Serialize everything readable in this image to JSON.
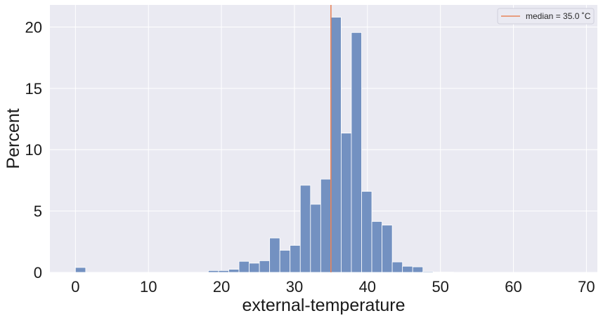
{
  "chart_data": {
    "type": "bar",
    "title": "",
    "xlabel": "external-temperature",
    "ylabel": "Percent",
    "xlim": [
      -3.5,
      71.5
    ],
    "ylim": [
      0,
      21.8
    ],
    "xticks": [
      0,
      10,
      20,
      30,
      40,
      50,
      60,
      70
    ],
    "yticks": [
      0,
      5,
      10,
      15,
      20
    ],
    "grid": true,
    "legend_placement": "top-right",
    "bin_width": 1.4,
    "bins": [
      {
        "x0": 0.0,
        "value": 0.4
      },
      {
        "x0": 1.4,
        "value": 0.0
      },
      {
        "x0": 2.8,
        "value": 0.0
      },
      {
        "x0": 4.2,
        "value": 0.0
      },
      {
        "x0": 5.6,
        "value": 0.0
      },
      {
        "x0": 7.0,
        "value": 0.0
      },
      {
        "x0": 8.4,
        "value": 0.0
      },
      {
        "x0": 9.8,
        "value": 0.0
      },
      {
        "x0": 11.2,
        "value": 0.0
      },
      {
        "x0": 12.6,
        "value": 0.0
      },
      {
        "x0": 14.0,
        "value": 0.0
      },
      {
        "x0": 15.4,
        "value": 0.0
      },
      {
        "x0": 16.8,
        "value": 0.0
      },
      {
        "x0": 18.2,
        "value": 0.15
      },
      {
        "x0": 19.6,
        "value": 0.15
      },
      {
        "x0": 21.0,
        "value": 0.25
      },
      {
        "x0": 22.4,
        "value": 0.9
      },
      {
        "x0": 23.8,
        "value": 0.75
      },
      {
        "x0": 25.2,
        "value": 0.95
      },
      {
        "x0": 26.6,
        "value": 2.8
      },
      {
        "x0": 28.0,
        "value": 1.8
      },
      {
        "x0": 29.4,
        "value": 2.2
      },
      {
        "x0": 30.8,
        "value": 7.1
      },
      {
        "x0": 32.2,
        "value": 5.55
      },
      {
        "x0": 33.6,
        "value": 7.6
      },
      {
        "x0": 35.0,
        "value": 20.8
      },
      {
        "x0": 36.4,
        "value": 11.35
      },
      {
        "x0": 37.8,
        "value": 19.55
      },
      {
        "x0": 39.2,
        "value": 6.6
      },
      {
        "x0": 40.6,
        "value": 4.15
      },
      {
        "x0": 42.0,
        "value": 3.85
      },
      {
        "x0": 43.4,
        "value": 0.85
      },
      {
        "x0": 44.8,
        "value": 0.5
      },
      {
        "x0": 46.2,
        "value": 0.45
      },
      {
        "x0": 47.6,
        "value": 0.07
      },
      {
        "x0": 49.0,
        "value": 0.02
      },
      {
        "x0": 50.4,
        "value": 0.02
      },
      {
        "x0": 51.8,
        "value": 0.0
      }
    ],
    "median": {
      "value": 35.0,
      "label": "median = 35.0 ˚C"
    },
    "colors": {
      "plot_background": "#eaeaf2",
      "grid": "#ffffff",
      "bar_fill": "#7391c1",
      "bar_edge": "#ffffff",
      "median_line": "#e8845a"
    }
  }
}
